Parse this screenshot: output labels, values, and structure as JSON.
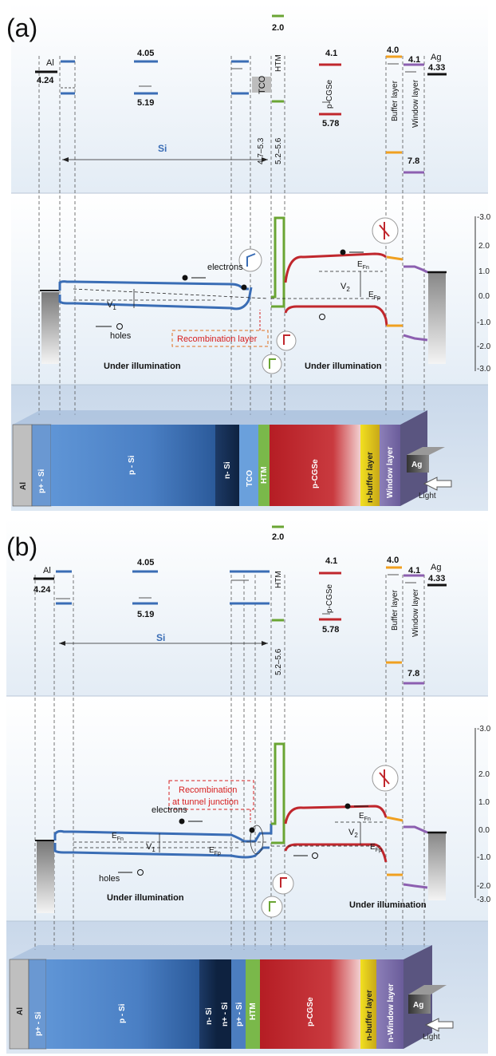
{
  "panel_a": {
    "label": "(a)",
    "energies": {
      "al_name": "Al",
      "al_wf": "4.24",
      "si_ea": "4.05",
      "si_ip": "5.19",
      "htm_lumo": "2.0",
      "tco_range": "4.7–5.3",
      "htm_range": "5.2–5.6",
      "tco_name": "TCO",
      "htm_name": "HTM",
      "cgse_ea": "4.1",
      "cgse_name": "p-CGSe",
      "cgse_ip": "5.78",
      "buffer_ea": "4.0",
      "buffer_name": "Buffer layer",
      "window_ea": "4.1",
      "window_name": "Window layer",
      "window_ip": "7.8",
      "ag_name": "Ag",
      "ag_wf": "4.33",
      "si_span": "Si"
    },
    "band": {
      "electrons": "electrons",
      "holes": "holes",
      "v1_label": "V",
      "v1_sub": "1",
      "v2_label": "V",
      "v2_sub": "2",
      "efn": "E",
      "efn_sub": "Fn",
      "efp": "E",
      "efp_sub": "Fp",
      "recomb": "Recombination layer",
      "illum_left": "Under illumination",
      "illum_right": "Under illumination"
    },
    "scale": [
      "-3.0",
      "2.0",
      "1.0",
      "0.0",
      "-1.0",
      "-2.0",
      "-3.0"
    ],
    "device": [
      "Al",
      "p+ - Si",
      "p - Si",
      "n- Si",
      "TCO",
      "HTM",
      "p-CGSe",
      "n-buffer layer",
      "Window layer",
      "Ag",
      "Light"
    ]
  },
  "panel_b": {
    "label": "(b)",
    "energies": {
      "al_name": "Al",
      "al_wf": "4.24",
      "si_ea": "4.05",
      "si_ip": "5.19",
      "htm_lumo": "2.0",
      "htm_name": "HTM",
      "htm_range": "5.2–5.6",
      "cgse_ea": "4.1",
      "cgse_name": "p-CGSe",
      "cgse_ip": "5.78",
      "buffer_ea": "4.0",
      "buffer_name": "Buffer layer",
      "window_ea": "4.1",
      "window_name": "Window layer",
      "window_ip": "7.8",
      "ag_name": "Ag",
      "ag_wf": "4.33",
      "si_span": "Si"
    },
    "band": {
      "electrons": "electrons",
      "holes": "holes",
      "v1_label": "V",
      "v1_sub": "1",
      "v2_label": "V",
      "v2_sub": "2",
      "efn": "E",
      "efn_sub": "Fn",
      "efp": "E",
      "efp_sub": "Fp",
      "recomb_line1": "Recombination",
      "recomb_line2": "at tunnel junction",
      "illum_left": "Under illumination",
      "illum_right": "Under illumination"
    },
    "scale": [
      "-3.0",
      "2.0",
      "1.0",
      "0.0",
      "-1.0",
      "-2.0",
      "-3.0"
    ],
    "device": [
      "Al",
      "p+ - Si",
      "p - Si",
      "n- Si",
      "n+ - Si",
      "p+ - Si",
      "HTM",
      "p-CGSe",
      "n-buffer layer",
      "n-Window layer",
      "Ag",
      "Light"
    ]
  },
  "colors": {
    "si_band": "#3a6db5",
    "htm": "#6aa533",
    "cgse": "#c0272d",
    "buffer": "#f0a020",
    "window": "#8c5fb0",
    "metal": "#111111",
    "recomb": "#d62020"
  }
}
